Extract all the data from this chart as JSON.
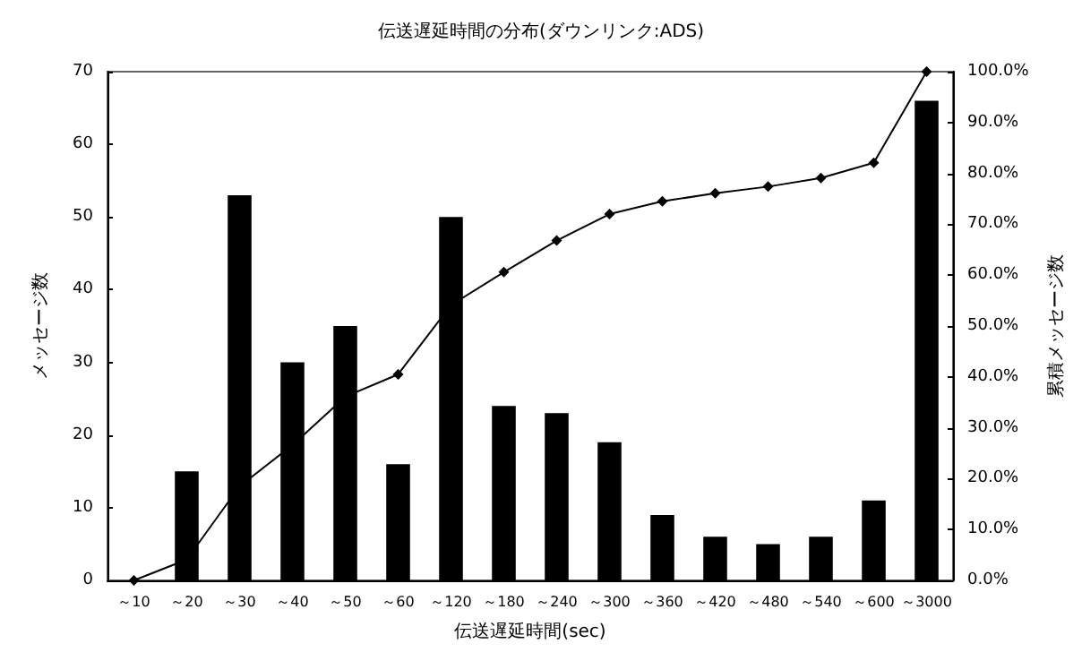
{
  "chart_data": {
    "type": "bar",
    "title": "伝送遅延時間の分布(ダウンリンク:ADS)",
    "xlabel": "伝送遅延時間(sec)",
    "ylabel": "メッセージ数",
    "y2label": "累積メッセージ数",
    "categories": [
      "～10",
      "～20",
      "～30",
      "～40",
      "～50",
      "～60",
      "～120",
      "～180",
      "～240",
      "～300",
      "～360",
      "～420",
      "～480",
      "～540",
      "～600",
      "～3000"
    ],
    "series": [
      {
        "color": "#000000",
        "values": [
          0,
          15,
          53,
          30,
          35,
          16,
          50,
          24,
          23,
          19,
          9,
          6,
          5,
          6,
          11,
          66
        ]
      },
      {
        "type": "line",
        "axis": "y2",
        "color": "#000000",
        "marker": "diamond",
        "values": [
          0,
          4.1,
          18.5,
          26.6,
          36.1,
          40.5,
          54.1,
          60.6,
          66.8,
          72.0,
          74.5,
          76.1,
          77.4,
          79.1,
          82.1,
          100
        ]
      }
    ],
    "ylim": [
      0,
      70
    ],
    "yticks": [
      0,
      10,
      20,
      30,
      40,
      50,
      60,
      70
    ],
    "y2lim": [
      0,
      100
    ],
    "y2ticks": [
      {
        "value": 0,
        "label": "0.0%"
      },
      {
        "value": 10,
        "label": "10.0%"
      },
      {
        "value": 20,
        "label": "20.0%"
      },
      {
        "value": 30,
        "label": "30.0%"
      },
      {
        "value": 40,
        "label": "40.0%"
      },
      {
        "value": 50,
        "label": "50.0%"
      },
      {
        "value": 60,
        "label": "60.0%"
      },
      {
        "value": 70,
        "label": "70.0%"
      },
      {
        "value": 80,
        "label": "80.0%"
      },
      {
        "value": 90,
        "label": "90.0%"
      },
      {
        "value": 100,
        "label": "100.0%"
      }
    ],
    "grid": false
  }
}
